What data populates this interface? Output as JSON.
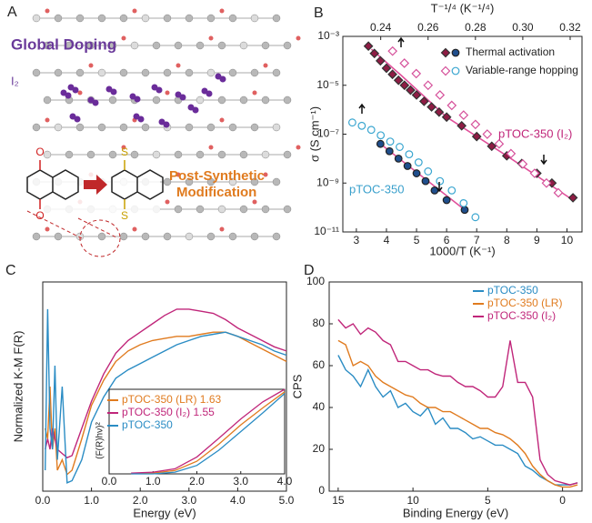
{
  "illustration": {
    "panel_label": "A",
    "title": "Global Doping",
    "dopant": "I₂",
    "caption_lines": [
      "Post-Synthetic",
      "Modification"
    ],
    "atoms": [
      "O",
      "O",
      "S",
      "S"
    ]
  },
  "chart_data": [
    {
      "type": "scatter",
      "panel_label": "B",
      "xlabel": "1000/T (K⁻¹)",
      "x2label": "T⁻¹/⁴ (K⁻¹/⁴)",
      "ylabel": "σ (S cm⁻¹)",
      "xlim": [
        2.55,
        10.5
      ],
      "xticks": [
        3,
        4,
        5,
        6,
        7,
        8,
        9,
        10
      ],
      "x2lim": [
        0.224,
        0.325
      ],
      "x2ticks": [
        0.24,
        0.26,
        0.28,
        {
          "value": 0.3,
          "label": "0.30"
        },
        0.32
      ],
      "ylim": [
        1e-11,
        0.001
      ],
      "yscale": "log",
      "yticks": [
        {
          "value": 0.001,
          "label": "10⁻³"
        },
        {
          "value": 1e-05,
          "label": "10⁻⁵"
        },
        {
          "value": 1e-07,
          "label": "10⁻⁷"
        },
        {
          "value": 1e-09,
          "label": "10⁻⁹"
        },
        {
          "value": 1e-11,
          "label": "10⁻¹¹"
        }
      ],
      "legend": "upper right",
      "series": [
        {
          "name": "Thermal activation",
          "filled": true,
          "groups": [
            {
              "label": "pTOC-350 (I₂)",
              "label_color": "#c0267a",
              "marker": "diamond",
              "color": "#8e1c44",
              "x": [
                3.4,
                3.6,
                3.8,
                4.0,
                4.2,
                4.4,
                4.6,
                4.8,
                5.0,
                5.25,
                5.5,
                5.75,
                6.0,
                6.5,
                7.0,
                7.5,
                8.0,
                8.5,
                9.0,
                9.5,
                10.2
              ],
              "values": [
                0.0004,
                0.0002,
                0.0001,
                5e-05,
                2.8e-05,
                1.6e-05,
                1e-05,
                6.3e-06,
                4e-06,
                2.2e-06,
                1.3e-06,
                8e-07,
                5e-07,
                2.2e-07,
                8e-08,
                3.2e-08,
                1.3e-08,
                6.3e-09,
                2.5e-09,
                1e-09,
                2.5e-10
              ],
              "fit_color": "#e0509a",
              "fit_x": [
                3.5,
                4.5,
                6.0,
                8.0,
                10.2
              ],
              "fit_values": [
                0.0003,
                2.5e-05,
                5e-07,
                1.3e-08,
                2e-10
              ]
            },
            {
              "label": "pTOC-350",
              "label_color": "#3aa0cc",
              "marker": "circle",
              "color": "#1f4e8c",
              "x": [
                3.8,
                4.1,
                4.4,
                4.7,
                5.0,
                5.3,
                5.6,
                6.0,
                6.6
              ],
              "values": [
                4e-08,
                2e-08,
                1e-08,
                5e-09,
                2.5e-09,
                1.2e-09,
                5e-10,
                2e-10,
                8e-11
              ],
              "fit_color": "#e0509a",
              "fit_x": [
                3.8,
                6.6
              ],
              "fit_values": [
                4e-08,
                8e-11
              ]
            }
          ]
        },
        {
          "name": "Variable-range hopping",
          "filled": false,
          "x_axis": "x2",
          "groups": [
            {
              "marker": "diamond",
              "color": "#d5509a",
              "x": [
                0.245,
                0.25,
                0.255,
                0.26,
                0.265,
                0.27,
                0.275,
                0.28,
                0.285,
                0.29,
                0.295,
                0.3,
                0.305,
                0.31,
                0.315
              ],
              "values": [
                0.00025,
                8e-05,
                3e-05,
                1e-05,
                4e-06,
                1.5e-06,
                6e-07,
                2.5e-07,
                1e-07,
                4e-08,
                1.6e-08,
                6e-09,
                2.5e-09,
                1e-09,
                4e-10
              ]
            },
            {
              "marker": "circle",
              "color": "#3aa6d0",
              "x": [
                0.228,
                0.232,
                0.236,
                0.24,
                0.244,
                0.248,
                0.252,
                0.256,
                0.26,
                0.265,
                0.27,
                0.275,
                0.28
              ],
              "values": [
                3e-07,
                2.2e-07,
                1.5e-07,
                9e-08,
                5e-08,
                3e-08,
                1.5e-08,
                7e-09,
                3e-09,
                1.2e-09,
                5e-10,
                1.5e-10,
                4e-11
              ]
            }
          ]
        }
      ]
    },
    {
      "type": "line",
      "panel_label": "C",
      "xlabel": "Energy (eV)",
      "ylabel": "Normalized K-M F(R)",
      "xlim": [
        0,
        5
      ],
      "xticks": [
        {
          "value": 0,
          "label": "0.0"
        },
        {
          "value": 1,
          "label": "1.0"
        },
        {
          "value": 2,
          "label": "2.0"
        },
        {
          "value": 3,
          "label": "3.0"
        },
        {
          "value": 4,
          "label": "4.0"
        },
        {
          "value": 5,
          "label": "5.0"
        }
      ],
      "ylim": [
        0,
        1
      ],
      "legend": "lower right",
      "x": [
        0.05,
        0.1,
        0.15,
        0.2,
        0.25,
        0.3,
        0.4,
        0.5,
        0.6,
        0.8,
        1.0,
        1.25,
        1.5,
        1.75,
        2.0,
        2.25,
        2.5,
        2.75,
        3.0,
        3.25,
        3.5,
        3.75,
        4.0,
        4.25,
        4.5,
        4.75,
        5.0
      ],
      "series": [
        {
          "name": "pTOC-350 (LR) 1.63",
          "color": "#e07b1f",
          "values": [
            0.3,
            0.25,
            0.5,
            0.2,
            0.3,
            0.1,
            0.15,
            0.08,
            0.1,
            0.25,
            0.41,
            0.53,
            0.62,
            0.67,
            0.7,
            0.72,
            0.73,
            0.74,
            0.74,
            0.75,
            0.76,
            0.76,
            0.74,
            0.71,
            0.68,
            0.65,
            0.62
          ]
        },
        {
          "name": "pTOC-350 (I₂) 1.55",
          "color": "#c0267a",
          "values": [
            0.2,
            0.25,
            0.2,
            0.3,
            0.25,
            0.2,
            0.18,
            0.16,
            0.17,
            0.3,
            0.43,
            0.56,
            0.66,
            0.72,
            0.76,
            0.8,
            0.84,
            0.87,
            0.87,
            0.86,
            0.85,
            0.82,
            0.78,
            0.75,
            0.72,
            0.69,
            0.67
          ]
        },
        {
          "name": "pTOC-350",
          "color": "#2a8cc4",
          "values": [
            0.1,
            0.87,
            0.3,
            0.2,
            0.6,
            0.15,
            0.5,
            0.04,
            0.05,
            0.15,
            0.33,
            0.45,
            0.54,
            0.58,
            0.61,
            0.64,
            0.67,
            0.7,
            0.72,
            0.74,
            0.75,
            0.76,
            0.74,
            0.72,
            0.7,
            0.67,
            0.65
          ]
        }
      ],
      "inset": {
        "ylabel": "(F(R)hν)²",
        "xlim": [
          0,
          4
        ],
        "ylim": [
          0,
          1
        ],
        "xticks": [
          {
            "value": 0,
            "label": "0.0"
          },
          {
            "value": 1,
            "label": "1.0"
          },
          {
            "value": 2,
            "label": "2.0"
          },
          {
            "value": 3,
            "label": "3.0"
          },
          {
            "value": 4,
            "label": "4.0"
          }
        ],
        "x": [
          0.5,
          1.0,
          1.5,
          2.0,
          2.5,
          3.0,
          3.5,
          4.0
        ],
        "series": [
          {
            "color": "#e07b1f",
            "values": [
              0,
              0.01,
              0.04,
              0.15,
              0.35,
              0.58,
              0.78,
              0.97
            ]
          },
          {
            "color": "#c0267a",
            "values": [
              0.01,
              0.02,
              0.06,
              0.2,
              0.42,
              0.65,
              0.85,
              1.0
            ]
          },
          {
            "color": "#2a8cc4",
            "values": [
              0,
              0,
              0.02,
              0.1,
              0.28,
              0.5,
              0.72,
              0.95
            ]
          }
        ]
      }
    },
    {
      "type": "line",
      "panel_label": "D",
      "xlabel": "Binding Energy (eV)",
      "ylabel": "CPS",
      "xlim": [
        15.6,
        -1.3
      ],
      "xticks": [
        15,
        10,
        5,
        0
      ],
      "ylim": [
        0,
        100
      ],
      "yticks": [
        0,
        20,
        40,
        60,
        80,
        100
      ],
      "legend": "upper right",
      "x": [
        15,
        14.5,
        14,
        13.5,
        13,
        12.5,
        12,
        11.5,
        11,
        10.5,
        10,
        9.5,
        9,
        8.5,
        8,
        7.5,
        7,
        6.5,
        6,
        5.5,
        5,
        4.5,
        4,
        3.5,
        3,
        2.5,
        2,
        1.5,
        1,
        0.5,
        0,
        -0.5,
        -1
      ],
      "series": [
        {
          "name": "pTOC-350",
          "color": "#2a8cc4",
          "values": [
            65,
            58,
            55,
            50,
            58,
            50,
            45,
            48,
            40,
            42,
            38,
            36,
            40,
            32,
            35,
            30,
            30,
            28,
            25,
            26,
            24,
            22,
            22,
            20,
            18,
            12,
            10,
            7,
            5,
            3,
            3,
            3,
            4
          ]
        },
        {
          "name": "pTOC-350 (LR)",
          "color": "#e07b1f",
          "values": [
            72,
            70,
            60,
            62,
            60,
            55,
            52,
            50,
            48,
            46,
            45,
            42,
            40,
            40,
            38,
            38,
            36,
            34,
            32,
            30,
            30,
            28,
            27,
            25,
            22,
            18,
            12,
            8,
            5,
            3,
            2,
            2,
            3
          ]
        },
        {
          "name": "pTOC-350 (I₂)",
          "color": "#c0267a",
          "values": [
            82,
            78,
            80,
            75,
            78,
            76,
            72,
            70,
            62,
            62,
            60,
            58,
            58,
            56,
            55,
            55,
            52,
            50,
            50,
            48,
            45,
            45,
            50,
            72,
            52,
            52,
            45,
            15,
            8,
            5,
            4,
            3,
            4
          ]
        }
      ]
    }
  ]
}
